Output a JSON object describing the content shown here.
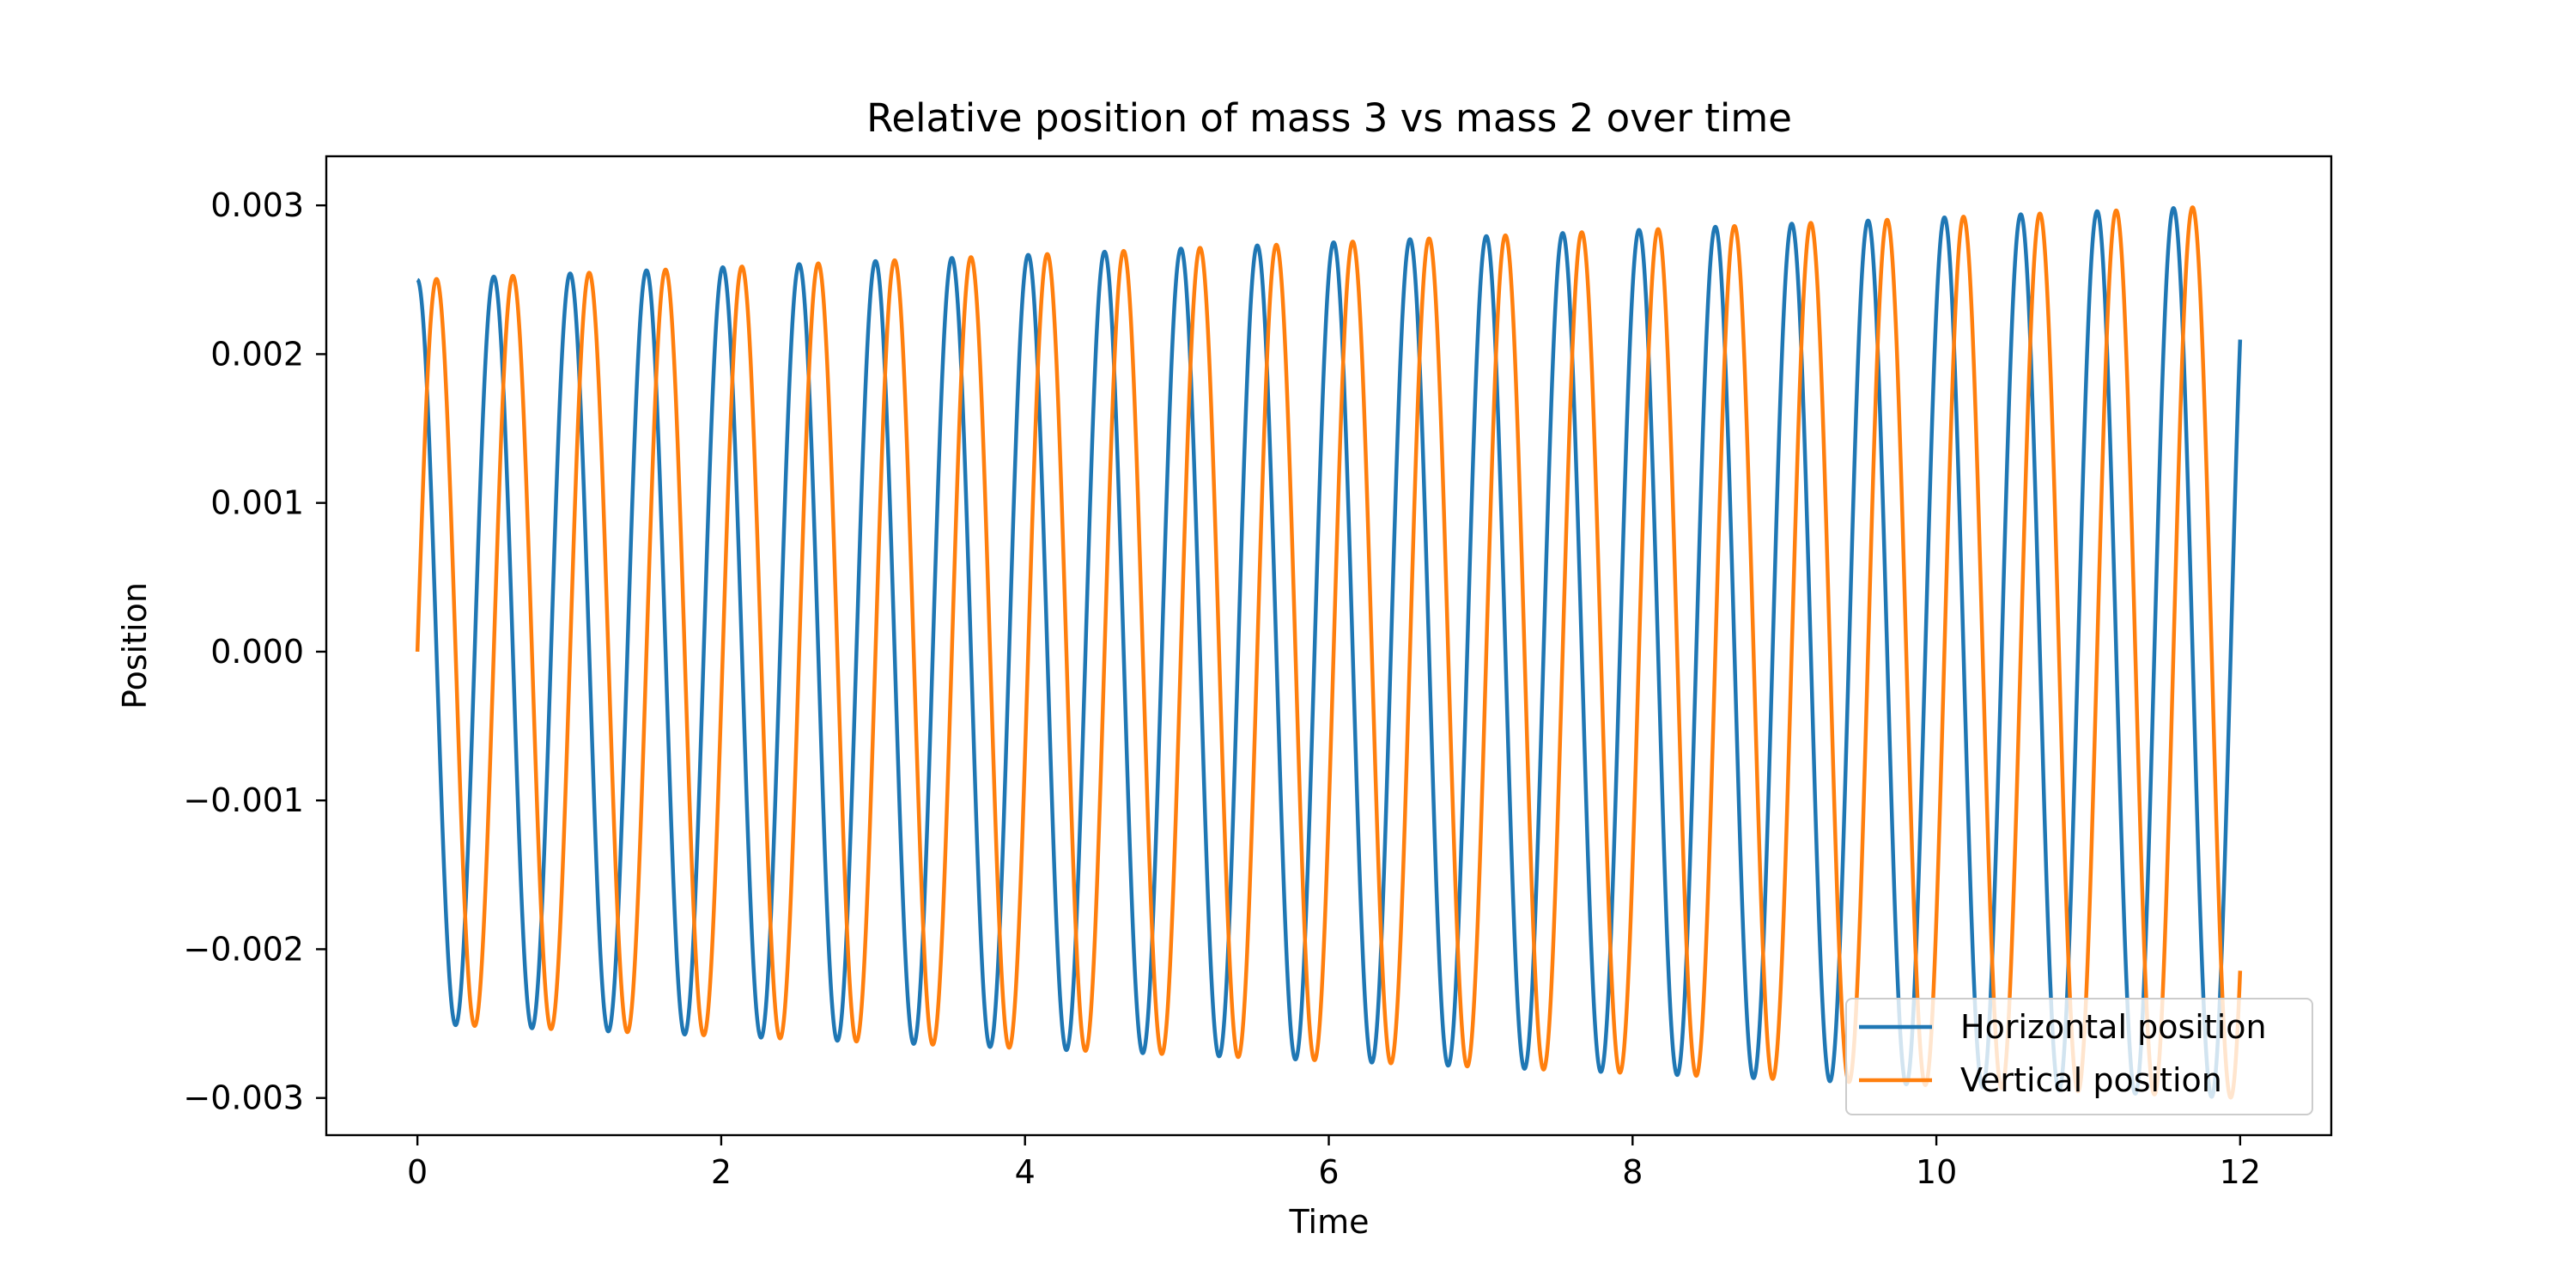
{
  "chart_data": {
    "type": "line",
    "title": "Relative position of mass 3 vs mass 2 over time",
    "xlabel": "Time",
    "ylabel": "Position",
    "xlim": [
      -0.6,
      12.6
    ],
    "ylim": [
      -0.00325,
      0.00333
    ],
    "xticks": [
      0,
      2,
      4,
      6,
      8,
      10,
      12
    ],
    "xtick_labels": [
      "0",
      "2",
      "4",
      "6",
      "8",
      "10",
      "12"
    ],
    "yticks": [
      0.003,
      0.002,
      0.001,
      0.0,
      -0.001,
      -0.002,
      -0.003
    ],
    "ytick_labels": [
      "0.003",
      "0.002",
      "0.001",
      "0.000",
      "−0.001",
      "−0.002",
      "−0.003"
    ],
    "grid": false,
    "legend_position": "bottom-right",
    "model": {
      "description": "oscillation a(t)*cos(w*t) and a(t)*sin(w*t)",
      "omega": 12.5,
      "amplitude_start": 0.0025,
      "amplitude_end": 0.003,
      "t_start": 0,
      "t_end": 12
    },
    "series": [
      {
        "name": "Horizontal position",
        "color": "#1f77b4",
        "function": "cos"
      },
      {
        "name": "Vertical position",
        "color": "#ff7f0e",
        "function": "sin"
      }
    ]
  }
}
